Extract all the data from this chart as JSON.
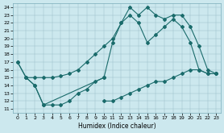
{
  "xlabel": "Humidex (Indice chaleur)",
  "background_color": "#cce8ee",
  "line_color": "#1a6b6b",
  "xlim": [
    -0.5,
    23.5
  ],
  "ylim": [
    10.5,
    24.5
  ],
  "xticks": [
    0,
    1,
    2,
    3,
    4,
    5,
    6,
    7,
    8,
    9,
    10,
    11,
    12,
    13,
    14,
    15,
    16,
    17,
    18,
    19,
    20,
    21,
    22,
    23
  ],
  "yticks": [
    11,
    12,
    13,
    14,
    15,
    16,
    17,
    18,
    19,
    20,
    21,
    22,
    23,
    24
  ],
  "line1_x": [
    0,
    1,
    2,
    3,
    4,
    5,
    6,
    7,
    8,
    9,
    10
  ],
  "line1_y": [
    17.0,
    15.0,
    14.0,
    11.5,
    11.5,
    11.5,
    12.0,
    13.0,
    13.5,
    14.5,
    15.0
  ],
  "line2_x": [
    10,
    11,
    12,
    13,
    14,
    15,
    16,
    17,
    18,
    19,
    20,
    21,
    22,
    23
  ],
  "line2_y": [
    12.0,
    12.0,
    12.5,
    13.0,
    13.5,
    14.0,
    14.5,
    14.5,
    15.0,
    15.5,
    16.0,
    16.0,
    15.5,
    15.5
  ],
  "line3_x": [
    1,
    2,
    3,
    4,
    5,
    6,
    7,
    8,
    9,
    10,
    11,
    12,
    13,
    14,
    15,
    16,
    17,
    18,
    19,
    20,
    21,
    22,
    23
  ],
  "line3_y": [
    15.0,
    15.0,
    15.0,
    15.0,
    15.2,
    15.5,
    16.0,
    17.0,
    18.0,
    19.0,
    20.0,
    22.0,
    23.0,
    22.0,
    19.5,
    20.5,
    21.5,
    22.5,
    21.5,
    19.5,
    16.0,
    15.5,
    15.5
  ],
  "line4_x": [
    0,
    1,
    2,
    3,
    10,
    11,
    12,
    13,
    14,
    15,
    16,
    17,
    18,
    19,
    20,
    21,
    22,
    23
  ],
  "line4_y": [
    17.0,
    15.0,
    14.0,
    11.5,
    15.0,
    19.5,
    22.0,
    24.0,
    23.0,
    24.0,
    23.0,
    22.5,
    23.0,
    23.0,
    21.5,
    19.0,
    16.0,
    15.5
  ]
}
